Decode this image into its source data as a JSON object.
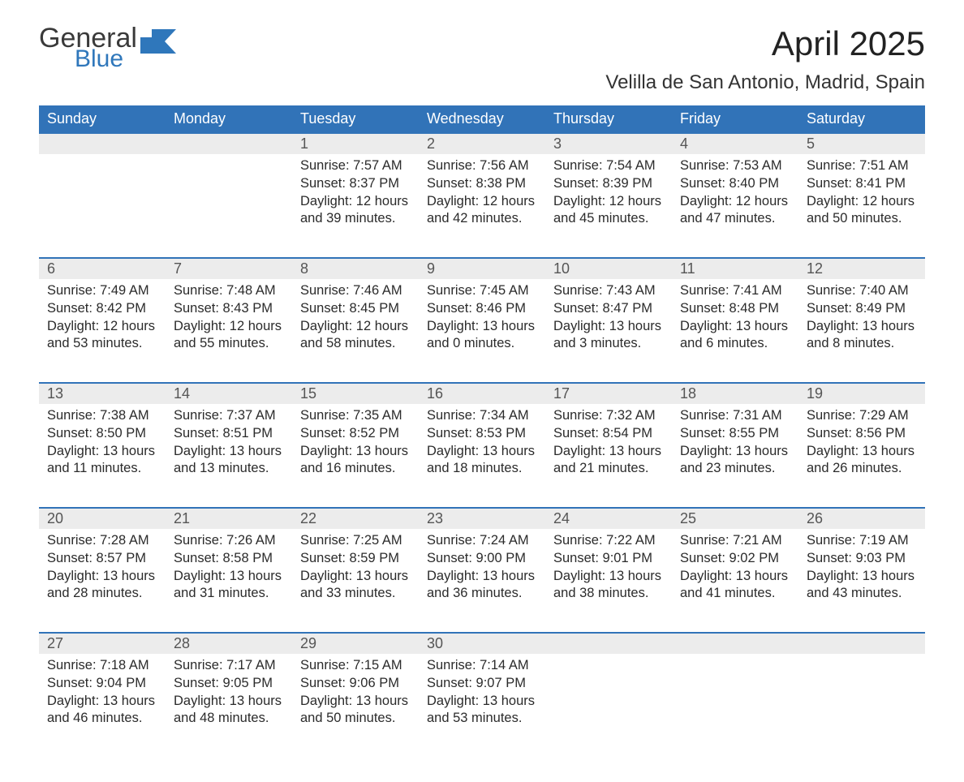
{
  "brand": {
    "word1": "General",
    "word2": "Blue"
  },
  "title": "April 2025",
  "location": "Velilla de San Antonio, Madrid, Spain",
  "colors": {
    "header_bg": "#3173b8",
    "header_text": "#ffffff",
    "daynum_bg": "#ececec",
    "row_divider": "#3173b8",
    "body_text": "#2b2b2b",
    "logo_blue": "#2f77bb"
  },
  "layout": {
    "columns": 7,
    "font_family": "Segoe UI, Arial, sans-serif",
    "title_fontsize": 42,
    "location_fontsize": 24,
    "header_fontsize": 18,
    "body_fontsize": 16.5
  },
  "weekdays": [
    "Sunday",
    "Monday",
    "Tuesday",
    "Wednesday",
    "Thursday",
    "Friday",
    "Saturday"
  ],
  "weeks": [
    [
      null,
      null,
      {
        "n": "1",
        "sunrise": "7:57 AM",
        "sunset": "8:37 PM",
        "dl1": "12 hours",
        "dl2": "and 39 minutes."
      },
      {
        "n": "2",
        "sunrise": "7:56 AM",
        "sunset": "8:38 PM",
        "dl1": "12 hours",
        "dl2": "and 42 minutes."
      },
      {
        "n": "3",
        "sunrise": "7:54 AM",
        "sunset": "8:39 PM",
        "dl1": "12 hours",
        "dl2": "and 45 minutes."
      },
      {
        "n": "4",
        "sunrise": "7:53 AM",
        "sunset": "8:40 PM",
        "dl1": "12 hours",
        "dl2": "and 47 minutes."
      },
      {
        "n": "5",
        "sunrise": "7:51 AM",
        "sunset": "8:41 PM",
        "dl1": "12 hours",
        "dl2": "and 50 minutes."
      }
    ],
    [
      {
        "n": "6",
        "sunrise": "7:49 AM",
        "sunset": "8:42 PM",
        "dl1": "12 hours",
        "dl2": "and 53 minutes."
      },
      {
        "n": "7",
        "sunrise": "7:48 AM",
        "sunset": "8:43 PM",
        "dl1": "12 hours",
        "dl2": "and 55 minutes."
      },
      {
        "n": "8",
        "sunrise": "7:46 AM",
        "sunset": "8:45 PM",
        "dl1": "12 hours",
        "dl2": "and 58 minutes."
      },
      {
        "n": "9",
        "sunrise": "7:45 AM",
        "sunset": "8:46 PM",
        "dl1": "13 hours",
        "dl2": "and 0 minutes."
      },
      {
        "n": "10",
        "sunrise": "7:43 AM",
        "sunset": "8:47 PM",
        "dl1": "13 hours",
        "dl2": "and 3 minutes."
      },
      {
        "n": "11",
        "sunrise": "7:41 AM",
        "sunset": "8:48 PM",
        "dl1": "13 hours",
        "dl2": "and 6 minutes."
      },
      {
        "n": "12",
        "sunrise": "7:40 AM",
        "sunset": "8:49 PM",
        "dl1": "13 hours",
        "dl2": "and 8 minutes."
      }
    ],
    [
      {
        "n": "13",
        "sunrise": "7:38 AM",
        "sunset": "8:50 PM",
        "dl1": "13 hours",
        "dl2": "and 11 minutes."
      },
      {
        "n": "14",
        "sunrise": "7:37 AM",
        "sunset": "8:51 PM",
        "dl1": "13 hours",
        "dl2": "and 13 minutes."
      },
      {
        "n": "15",
        "sunrise": "7:35 AM",
        "sunset": "8:52 PM",
        "dl1": "13 hours",
        "dl2": "and 16 minutes."
      },
      {
        "n": "16",
        "sunrise": "7:34 AM",
        "sunset": "8:53 PM",
        "dl1": "13 hours",
        "dl2": "and 18 minutes."
      },
      {
        "n": "17",
        "sunrise": "7:32 AM",
        "sunset": "8:54 PM",
        "dl1": "13 hours",
        "dl2": "and 21 minutes."
      },
      {
        "n": "18",
        "sunrise": "7:31 AM",
        "sunset": "8:55 PM",
        "dl1": "13 hours",
        "dl2": "and 23 minutes."
      },
      {
        "n": "19",
        "sunrise": "7:29 AM",
        "sunset": "8:56 PM",
        "dl1": "13 hours",
        "dl2": "and 26 minutes."
      }
    ],
    [
      {
        "n": "20",
        "sunrise": "7:28 AM",
        "sunset": "8:57 PM",
        "dl1": "13 hours",
        "dl2": "and 28 minutes."
      },
      {
        "n": "21",
        "sunrise": "7:26 AM",
        "sunset": "8:58 PM",
        "dl1": "13 hours",
        "dl2": "and 31 minutes."
      },
      {
        "n": "22",
        "sunrise": "7:25 AM",
        "sunset": "8:59 PM",
        "dl1": "13 hours",
        "dl2": "and 33 minutes."
      },
      {
        "n": "23",
        "sunrise": "7:24 AM",
        "sunset": "9:00 PM",
        "dl1": "13 hours",
        "dl2": "and 36 minutes."
      },
      {
        "n": "24",
        "sunrise": "7:22 AM",
        "sunset": "9:01 PM",
        "dl1": "13 hours",
        "dl2": "and 38 minutes."
      },
      {
        "n": "25",
        "sunrise": "7:21 AM",
        "sunset": "9:02 PM",
        "dl1": "13 hours",
        "dl2": "and 41 minutes."
      },
      {
        "n": "26",
        "sunrise": "7:19 AM",
        "sunset": "9:03 PM",
        "dl1": "13 hours",
        "dl2": "and 43 minutes."
      }
    ],
    [
      {
        "n": "27",
        "sunrise": "7:18 AM",
        "sunset": "9:04 PM",
        "dl1": "13 hours",
        "dl2": "and 46 minutes."
      },
      {
        "n": "28",
        "sunrise": "7:17 AM",
        "sunset": "9:05 PM",
        "dl1": "13 hours",
        "dl2": "and 48 minutes."
      },
      {
        "n": "29",
        "sunrise": "7:15 AM",
        "sunset": "9:06 PM",
        "dl1": "13 hours",
        "dl2": "and 50 minutes."
      },
      {
        "n": "30",
        "sunrise": "7:14 AM",
        "sunset": "9:07 PM",
        "dl1": "13 hours",
        "dl2": "and 53 minutes."
      },
      null,
      null,
      null
    ]
  ],
  "labels": {
    "sunrise": "Sunrise: ",
    "sunset": "Sunset: ",
    "daylight": "Daylight: "
  }
}
